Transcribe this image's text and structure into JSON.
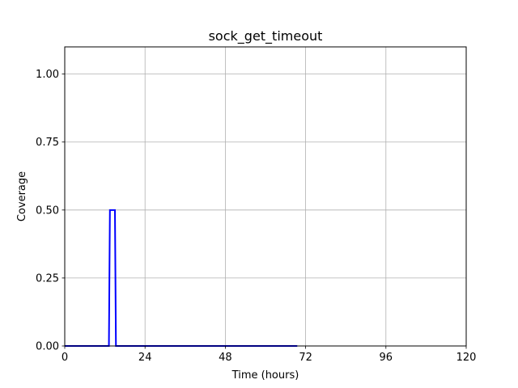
{
  "chart_data": {
    "type": "line",
    "title": "sock_get_timeout",
    "xlabel": "Time (hours)",
    "ylabel": "Coverage",
    "xlim": [
      0,
      120
    ],
    "ylim": [
      0,
      1.1
    ],
    "xticks": [
      0,
      24,
      48,
      72,
      96,
      120
    ],
    "xtick_labels": [
      "0",
      "24",
      "48",
      "72",
      "96",
      "120"
    ],
    "yticks": [
      0,
      0.25,
      0.5,
      0.75,
      1.0
    ],
    "ytick_labels": [
      "0.00",
      "0.25",
      "0.50",
      "0.75",
      "1.00"
    ],
    "grid": true,
    "series": [
      {
        "color": "#0000ff",
        "x": [
          0,
          13.2,
          13.5,
          15.0,
          15.3,
          69.5
        ],
        "y": [
          0,
          0,
          0.5,
          0.5,
          0,
          0
        ]
      }
    ]
  }
}
